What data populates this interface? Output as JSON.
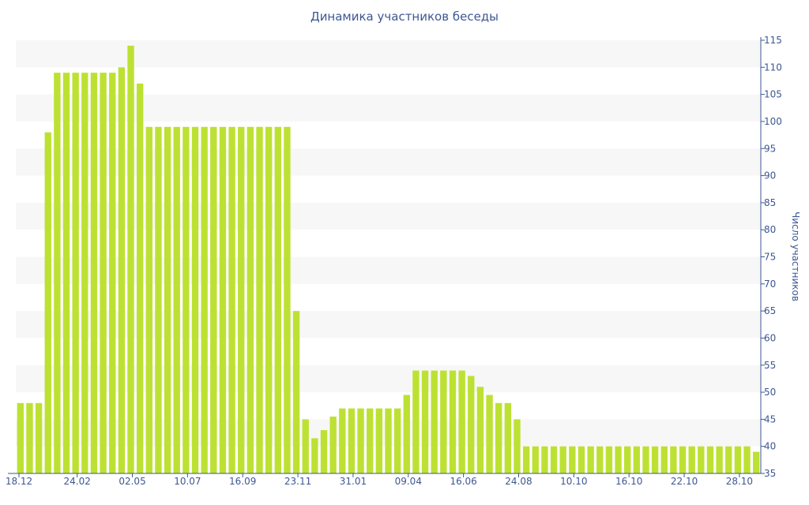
{
  "chart_data": {
    "type": "bar",
    "title": "Динамика участников беседы",
    "ylabel": "Число участников",
    "ylim": [
      35,
      115
    ],
    "y_ticks": [
      35,
      40,
      45,
      50,
      55,
      60,
      65,
      70,
      75,
      80,
      85,
      90,
      95,
      100,
      105,
      110,
      115
    ],
    "x_tick_labels": [
      "18.12",
      "24.02",
      "02.05",
      "10.07",
      "16.09",
      "23.11",
      "31.01",
      "09.04",
      "16.06",
      "24.08",
      "10.10",
      "16.10",
      "22.10",
      "28.10"
    ],
    "grid": "alternating horizontal bands",
    "color": "#bde133",
    "values": [
      48,
      48,
      48,
      98,
      109,
      109,
      109,
      109,
      109,
      109,
      109,
      110,
      114,
      107,
      99,
      99,
      99,
      99,
      99,
      99,
      99,
      99,
      99,
      99,
      99,
      99,
      99,
      99,
      99,
      99,
      65,
      45,
      41.5,
      43,
      45.5,
      47,
      47,
      47,
      47,
      47,
      47,
      47,
      49.5,
      54,
      54,
      54,
      54,
      54,
      54,
      53,
      51,
      49.5,
      48,
      48,
      45,
      40,
      40,
      40,
      40,
      40,
      40,
      40,
      40,
      40,
      40,
      40,
      40,
      40,
      40,
      40,
      40,
      40,
      40,
      40,
      40,
      40,
      40,
      40,
      40,
      40,
      39
    ]
  }
}
